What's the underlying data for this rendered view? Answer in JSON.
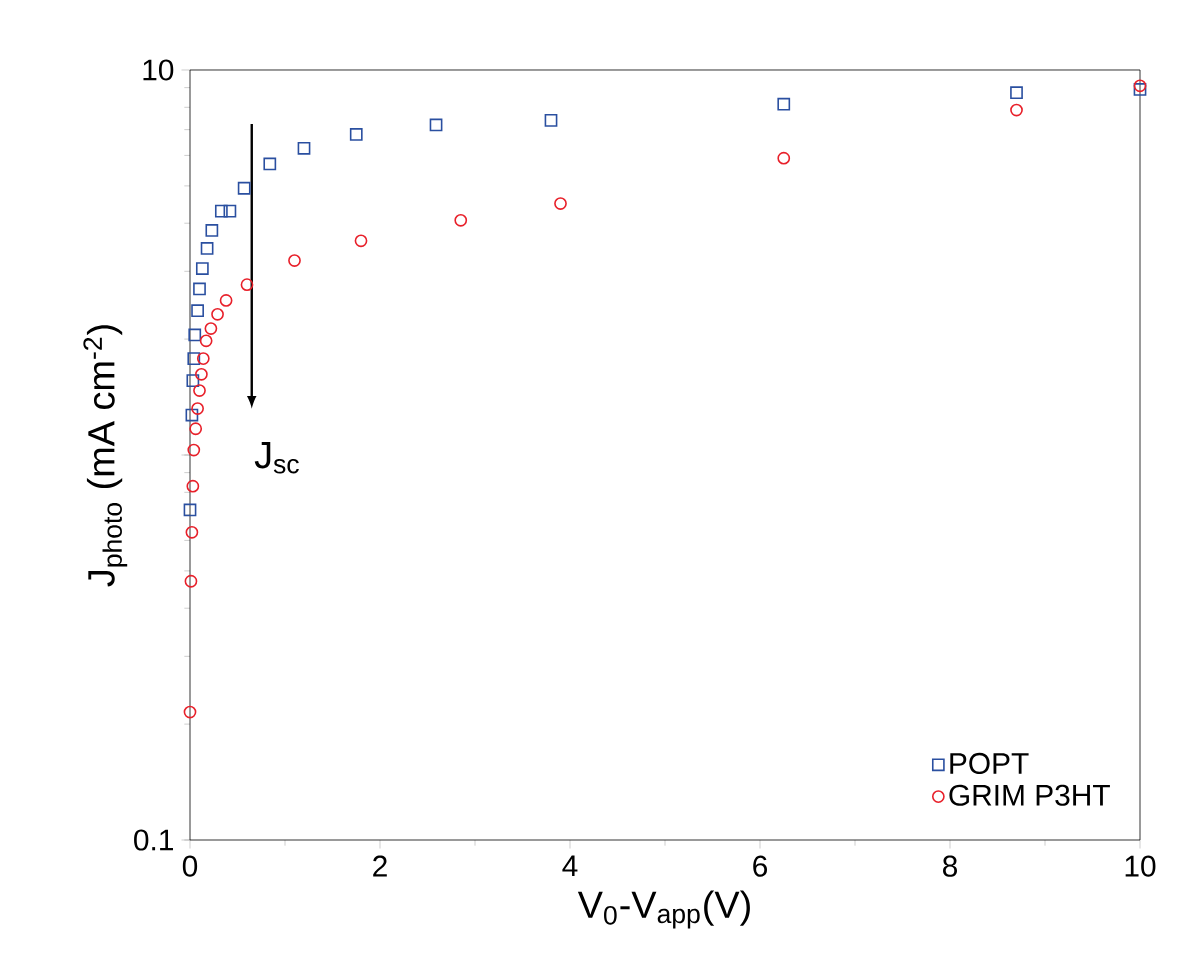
{
  "chart_data": {
    "type": "scatter",
    "xlabel": "V$_{0}$-V$_{app}$(V)",
    "ylabel": "J$_{photo}$ (mA cm$^{-2}$)",
    "log": "y",
    "xlim": [
      0,
      10
    ],
    "ylim": [
      0.1,
      10
    ],
    "xticks": [
      0,
      2,
      4,
      6,
      8,
      10
    ],
    "yticks": [
      {
        "value": 0.1,
        "label": "0.1"
      },
      {
        "value": 1,
        "label": null
      },
      {
        "value": 10,
        "label": "10"
      }
    ],
    "legend": "bottom right",
    "grid": false,
    "annotations": [
      "J$_{sc}$"
    ],
    "series": [
      {
        "name": "POPT",
        "color": "#2a4fa0",
        "marker": "square",
        "x": [
          0,
          0.02,
          0.03,
          0.04,
          0.05,
          0.08,
          0.1,
          0.13,
          0.18,
          0.23,
          0.33,
          0.42,
          0.57,
          0.84,
          1.2,
          1.75,
          2.59,
          3.8,
          6.25,
          8.7,
          10
        ],
        "values": [
          0.72,
          1.27,
          1.56,
          1.78,
          2.05,
          2.37,
          2.7,
          3.05,
          3.44,
          3.83,
          4.3,
          4.3,
          4.93,
          5.7,
          6.26,
          6.8,
          7.2,
          7.4,
          8.15,
          8.73,
          8.9
        ]
      },
      {
        "name": "GRIM P3HT",
        "color": "#e8202a",
        "marker": "circle",
        "x": [
          0,
          0.01,
          0.02,
          0.03,
          0.04,
          0.06,
          0.08,
          0.1,
          0.12,
          0.14,
          0.17,
          0.22,
          0.29,
          0.38,
          0.6,
          1.1,
          1.8,
          2.85,
          3.9,
          6.25,
          8.7,
          10
        ],
        "values": [
          0.215,
          0.47,
          0.63,
          0.83,
          1.03,
          1.17,
          1.32,
          1.47,
          1.62,
          1.78,
          1.98,
          2.13,
          2.32,
          2.52,
          2.77,
          3.2,
          3.6,
          4.07,
          4.5,
          5.9,
          7.87,
          9.1
        ]
      }
    ]
  }
}
